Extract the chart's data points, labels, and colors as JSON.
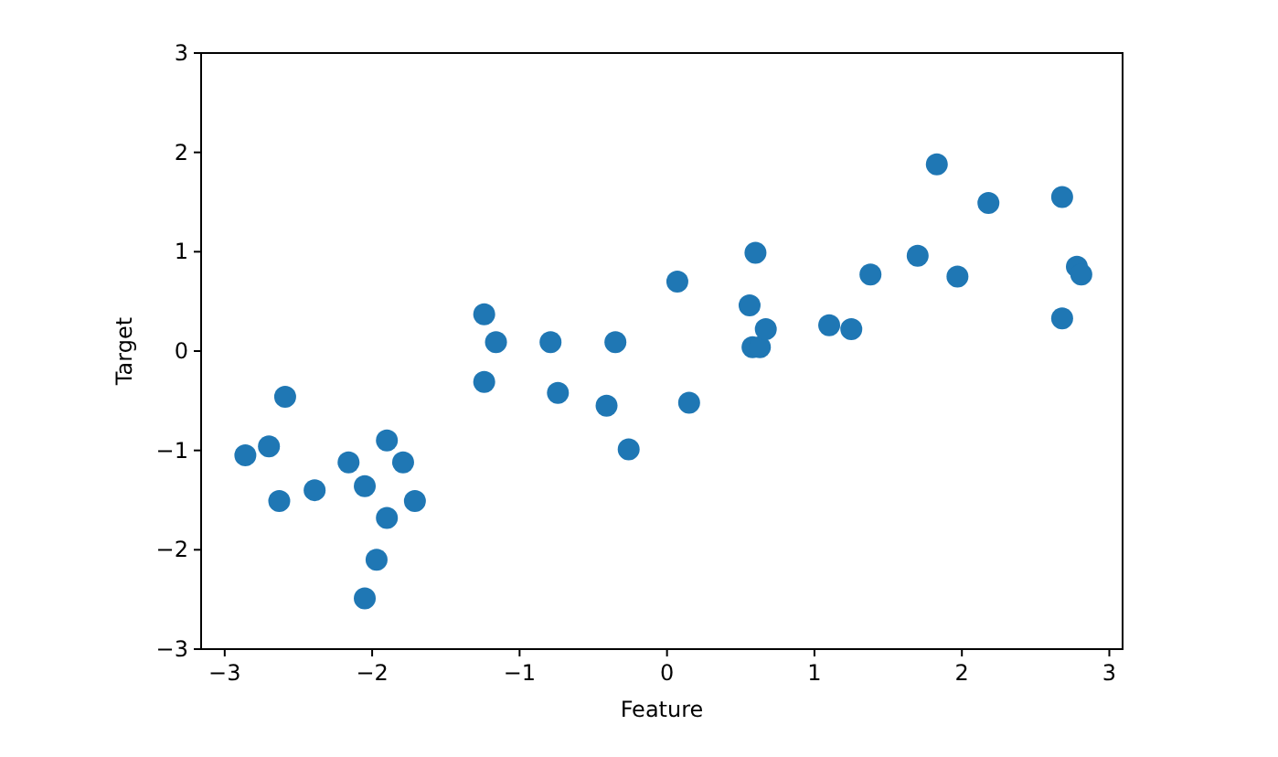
{
  "chart_data": {
    "type": "scatter",
    "xlabel": "Feature",
    "ylabel": "Target",
    "xlim": [
      -3.16,
      3.09
    ],
    "ylim": [
      -3,
      3
    ],
    "xticks": [
      -3,
      -2,
      -1,
      0,
      1,
      2,
      3
    ],
    "yticks": [
      -3,
      -2,
      -1,
      0,
      1,
      2,
      3
    ],
    "marker": "circle",
    "series": [
      {
        "color": "#1f77b4",
        "x": [
          -2.86,
          -2.7,
          -2.59,
          -2.63,
          -2.39,
          -2.16,
          -2.05,
          -1.9,
          -1.79,
          -1.71,
          -1.9,
          -1.97,
          -2.05,
          -1.24,
          -1.16,
          -1.24,
          -0.79,
          -0.74,
          -0.41,
          -0.35,
          -0.26,
          0.07,
          0.15,
          0.56,
          0.6,
          0.58,
          0.63,
          0.67,
          1.1,
          1.25,
          1.38,
          1.7,
          1.83,
          1.97,
          2.18,
          2.68,
          2.68,
          2.78,
          2.81
        ],
        "values": [
          -1.05,
          -0.96,
          -0.46,
          -1.51,
          -1.4,
          -1.12,
          -1.36,
          -0.9,
          -1.12,
          -1.51,
          -1.68,
          -2.1,
          -2.49,
          0.37,
          0.09,
          -0.31,
          0.09,
          -0.42,
          -0.55,
          0.09,
          -0.99,
          0.7,
          -0.52,
          0.46,
          0.99,
          0.04,
          0.04,
          0.22,
          0.26,
          0.22,
          0.77,
          0.96,
          1.88,
          0.75,
          1.49,
          1.55,
          0.33,
          0.85,
          0.77
        ]
      }
    ]
  }
}
